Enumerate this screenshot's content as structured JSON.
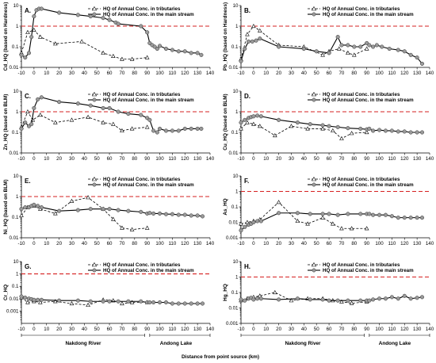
{
  "figure": {
    "x_axis_label": "Distance from point source (km)",
    "region_labels": [
      "Nakdong River",
      "Andong Lake",
      "Nakdong River",
      "Andong Lake"
    ]
  },
  "chart_data": [
    {
      "type": "line",
      "panel": "A.",
      "ylabel": "Cd_HQ (based on Hardness)",
      "yscale": "log",
      "ylim": [
        0.01,
        10
      ],
      "yticks": [
        0.01,
        0.1,
        1,
        10
      ],
      "ytick_labels": [
        "0.01",
        "0.1",
        "1",
        "10"
      ],
      "xlim": [
        -10,
        140
      ],
      "xticks": [
        -10,
        0,
        10,
        20,
        30,
        40,
        50,
        60,
        70,
        80,
        90,
        100,
        110,
        120,
        130,
        140
      ],
      "threshold": 1,
      "legend": [
        "HQ of Annual Conc. in tributaries",
        "HQ of Annual Conc. in the main stream"
      ],
      "series": [
        {
          "name": "HQ of Annual Conc. in tributaries",
          "x": [
            -10,
            -5,
            0,
            5,
            17,
            38,
            55,
            63,
            70,
            78,
            90
          ],
          "y": [
            0.05,
            0.5,
            0.65,
            0.3,
            0.14,
            0.18,
            0.05,
            0.035,
            0.025,
            0.025,
            0.03
          ]
        },
        {
          "name": "HQ of Annual Conc. in the main stream",
          "x": [
            -10,
            -7,
            -4,
            -2,
            0,
            2,
            4,
            6,
            20,
            35,
            45,
            55,
            60,
            65,
            67,
            85,
            90,
            92,
            94,
            96,
            98,
            100,
            105,
            110,
            115,
            120,
            125,
            130,
            133
          ],
          "y": [
            0.04,
            0.03,
            0.05,
            0.3,
            3,
            6,
            7,
            7,
            4.5,
            3.5,
            3,
            2.5,
            2,
            1.5,
            1.3,
            1,
            0.5,
            0.15,
            0.12,
            0.1,
            0.08,
            0.11,
            0.08,
            0.07,
            0.06,
            0.06,
            0.05,
            0.05,
            0.04
          ]
        }
      ]
    },
    {
      "type": "line",
      "panel": "B.",
      "ylabel": "Pb_HQ (based on Hardness)",
      "yscale": "log",
      "ylim": [
        0.01,
        10
      ],
      "yticks": [
        0.01,
        0.1,
        1,
        10
      ],
      "ytick_labels": [
        "0.01",
        "0.1",
        "1",
        "10"
      ],
      "xlim": [
        -10,
        140
      ],
      "xticks": [
        -10,
        0,
        10,
        20,
        30,
        40,
        50,
        60,
        70,
        80,
        90,
        100,
        110,
        120,
        130,
        140
      ],
      "threshold": 1,
      "legend": [
        "HQ of Annual Conc. in tributaries",
        "HQ of Annual Conc. in the main stream"
      ],
      "series": [
        {
          "name": "HQ of Annual Conc. in tributaries",
          "x": [
            -10,
            -5,
            0,
            5,
            20,
            40,
            55,
            60,
            68,
            75,
            80,
            90
          ],
          "y": [
            0.025,
            0.4,
            1,
            0.6,
            0.12,
            0.1,
            0.04,
            0.06,
            0.08,
            0.05,
            0.04,
            0.08
          ]
        },
        {
          "name": "HQ of Annual Conc. in the main stream",
          "x": [
            -10,
            -7,
            -4,
            -1,
            2,
            5,
            20,
            40,
            50,
            60,
            67,
            70,
            75,
            80,
            85,
            90,
            92,
            95,
            98,
            102,
            108,
            115,
            120,
            125,
            130,
            134
          ],
          "y": [
            0.02,
            0.08,
            0.18,
            0.18,
            0.2,
            0.25,
            0.1,
            0.08,
            0.06,
            0.05,
            0.3,
            0.12,
            0.12,
            0.1,
            0.1,
            0.15,
            0.12,
            0.1,
            0.12,
            0.1,
            0.08,
            0.07,
            0.06,
            0.04,
            0.03,
            0.015
          ]
        }
      ]
    },
    {
      "type": "line",
      "panel": "C.",
      "ylabel": "Zn_HQ (based on BLM)",
      "yscale": "log",
      "ylim": [
        0.01,
        10
      ],
      "yticks": [
        0.01,
        0.1,
        1,
        10
      ],
      "ytick_labels": [
        "0.01",
        "0.1",
        "1",
        "10"
      ],
      "xlim": [
        -10,
        140
      ],
      "xticks": [
        -10,
        0,
        10,
        20,
        30,
        40,
        50,
        60,
        70,
        80,
        90,
        100,
        110,
        120,
        130,
        140
      ],
      "threshold": 1,
      "legend": [
        "HQ of Annual Conc. in tributaries",
        "HQ of Annual Conc. in the main stream"
      ],
      "series": [
        {
          "name": "HQ of Annual Conc. in tributaries",
          "x": [
            -10,
            -5,
            -1,
            5,
            17,
            30,
            43,
            55,
            63,
            70,
            78,
            90
          ],
          "y": [
            0.18,
            1,
            0.4,
            0.7,
            0.3,
            0.4,
            0.55,
            0.3,
            0.25,
            0.12,
            0.15,
            0.18
          ]
        },
        {
          "name": "HQ of Annual Conc. in the main stream",
          "x": [
            -10,
            -7,
            -4,
            -2,
            0,
            3,
            6,
            20,
            35,
            45,
            55,
            60,
            67,
            75,
            85,
            90,
            92,
            95,
            98,
            100,
            105,
            110,
            115,
            120,
            125,
            130,
            133
          ],
          "y": [
            0.15,
            0.3,
            0.2,
            0.25,
            1.5,
            4,
            5,
            3,
            2.5,
            2,
            1.5,
            1.5,
            1,
            0.8,
            0.7,
            0.5,
            0.4,
            0.12,
            0.1,
            0.15,
            0.12,
            0.12,
            0.12,
            0.15,
            0.15,
            0.15,
            0.15
          ]
        }
      ]
    },
    {
      "type": "line",
      "panel": "D.",
      "ylabel": "Cu_HQ (based on BLM)",
      "yscale": "log",
      "ylim": [
        0.01,
        10
      ],
      "yticks": [
        0.01,
        0.1,
        1,
        10
      ],
      "ytick_labels": [
        "0.01",
        "0.1",
        "1",
        "10"
      ],
      "xlim": [
        -10,
        140
      ],
      "xticks": [
        -10,
        0,
        10,
        20,
        30,
        40,
        50,
        60,
        70,
        80,
        90,
        100,
        110,
        120,
        130,
        140
      ],
      "threshold": 1,
      "legend": [
        "HQ of Annual Conc. in tributaries",
        "HQ of Annual Conc. in the main stream"
      ],
      "series": [
        {
          "name": "HQ of Annual Conc. in tributaries",
          "x": [
            -10,
            -5,
            0,
            5,
            17,
            30,
            43,
            55,
            63,
            70,
            78,
            90
          ],
          "y": [
            0.15,
            0.3,
            0.25,
            0.2,
            0.07,
            0.2,
            0.15,
            0.15,
            0.12,
            0.05,
            0.09,
            0.1
          ]
        },
        {
          "name": "HQ of Annual Conc. in the main stream",
          "x": [
            -10,
            -7,
            -4,
            -2,
            0,
            3,
            6,
            20,
            35,
            45,
            55,
            60,
            67,
            75,
            85,
            90,
            92,
            95,
            100,
            105,
            110,
            115,
            120,
            125,
            130,
            134
          ],
          "y": [
            0.3,
            0.4,
            0.5,
            0.55,
            0.6,
            0.65,
            0.6,
            0.4,
            0.3,
            0.25,
            0.22,
            0.2,
            0.18,
            0.16,
            0.15,
            0.14,
            0.15,
            0.12,
            0.13,
            0.12,
            0.12,
            0.11,
            0.11,
            0.1,
            0.1,
            0.1
          ]
        }
      ]
    },
    {
      "type": "line",
      "panel": "E.",
      "ylabel": "Ni_HQ (based on BLM)",
      "yscale": "log",
      "ylim": [
        0.01,
        10
      ],
      "yticks": [
        0.01,
        0.1,
        1,
        10
      ],
      "ytick_labels": [
        "0.01",
        "0.1",
        "1",
        "10"
      ],
      "xlim": [
        -10,
        140
      ],
      "xticks": [
        -10,
        0,
        10,
        20,
        30,
        40,
        50,
        60,
        70,
        80,
        90,
        100,
        110,
        120,
        130,
        140
      ],
      "threshold": 1,
      "legend": [
        "HQ of Annual Conc. in tributaries",
        "HQ of Annual Conc. in the main stream"
      ],
      "series": [
        {
          "name": "HQ of Annual Conc. in tributaries",
          "x": [
            -10,
            -5,
            0,
            5,
            17,
            30,
            43,
            55,
            63,
            70,
            78,
            90
          ],
          "y": [
            0.12,
            0.3,
            0.35,
            0.25,
            0.15,
            0.6,
            0.9,
            0.25,
            0.08,
            0.03,
            0.025,
            0.03
          ]
        },
        {
          "name": "HQ of Annual Conc. in the main stream",
          "x": [
            -10,
            -7,
            -4,
            -2,
            0,
            3,
            6,
            20,
            35,
            45,
            55,
            60,
            67,
            75,
            85,
            90,
            92,
            95,
            100,
            105,
            110,
            115,
            120,
            125,
            130,
            134
          ],
          "y": [
            0.25,
            0.3,
            0.3,
            0.35,
            0.4,
            0.35,
            0.3,
            0.2,
            0.22,
            0.25,
            0.25,
            0.25,
            0.22,
            0.2,
            0.18,
            0.15,
            0.16,
            0.15,
            0.15,
            0.14,
            0.14,
            0.13,
            0.13,
            0.12,
            0.12,
            0.11
          ]
        }
      ]
    },
    {
      "type": "line",
      "panel": "F.",
      "ylabel": "As_HQ",
      "yscale": "log",
      "ylim": [
        0.001,
        10
      ],
      "yticks": [
        0.001,
        0.01,
        0.1,
        1,
        10
      ],
      "ytick_labels": [
        "0.001",
        "0.01",
        "0.1",
        "1",
        "10"
      ],
      "xlim": [
        -10,
        140
      ],
      "xticks": [
        -10,
        0,
        10,
        20,
        30,
        40,
        50,
        60,
        70,
        80,
        90,
        100,
        110,
        120,
        130,
        140
      ],
      "threshold": 1,
      "legend": [
        "HQ of Annual Conc. in tributaries",
        "HQ of Annual Conc. in the main stream"
      ],
      "series": [
        {
          "name": "HQ of Annual Conc. in tributaries",
          "x": [
            -10,
            -5,
            0,
            5,
            20,
            35,
            43,
            55,
            63,
            70,
            78,
            90
          ],
          "y": [
            0.008,
            0.01,
            0.012,
            0.015,
            0.2,
            0.012,
            0.008,
            0.02,
            0.008,
            0.004,
            0.004,
            0.004
          ]
        },
        {
          "name": "HQ of Annual Conc. in the main stream",
          "x": [
            -10,
            -7,
            -4,
            -2,
            0,
            3,
            6,
            20,
            35,
            45,
            55,
            60,
            67,
            75,
            85,
            90,
            92,
            95,
            100,
            105,
            110,
            115,
            120,
            125,
            130,
            134
          ],
          "y": [
            0.003,
            0.005,
            0.007,
            0.008,
            0.01,
            0.012,
            0.012,
            0.04,
            0.04,
            0.035,
            0.035,
            0.035,
            0.03,
            0.035,
            0.035,
            0.035,
            0.035,
            0.03,
            0.03,
            0.03,
            0.025,
            0.02,
            0.02,
            0.02,
            0.02,
            0.02
          ]
        }
      ]
    },
    {
      "type": "line",
      "panel": "G.",
      "ylabel": "Cr_HQ",
      "yscale": "log",
      "ylim": [
        0.0001,
        10
      ],
      "yticks": [
        0.001,
        0.01,
        0.1,
        1,
        10
      ],
      "ytick_labels": [
        "0.001",
        "0.01",
        "0.1",
        "1",
        "10"
      ],
      "xlim": [
        -10,
        140
      ],
      "xticks": [
        -10,
        0,
        10,
        20,
        30,
        40,
        50,
        60,
        70,
        80,
        90,
        100,
        110,
        120,
        130,
        140
      ],
      "threshold": 1,
      "legend": [
        "HQ of Annual Conc. in tributaries",
        "HQ of Annual Conc. in the main stream"
      ],
      "series": [
        {
          "name": "HQ of Annual Conc. in tributaries",
          "x": [
            -10,
            -5,
            0,
            5,
            17,
            30,
            43,
            55,
            63,
            70,
            78,
            90
          ],
          "y": [
            0.012,
            0.005,
            0.006,
            0.005,
            0.006,
            0.004,
            0.003,
            0.008,
            0.007,
            0.004,
            0.005,
            0.005
          ]
        },
        {
          "name": "HQ of Annual Conc. in the main stream",
          "x": [
            -10,
            -7,
            -4,
            -2,
            0,
            3,
            6,
            20,
            35,
            45,
            55,
            60,
            67,
            75,
            85,
            90,
            92,
            95,
            100,
            105,
            110,
            115,
            120,
            125,
            130,
            134
          ],
          "y": [
            0.015,
            0.012,
            0.01,
            0.009,
            0.008,
            0.008,
            0.008,
            0.007,
            0.007,
            0.006,
            0.006,
            0.006,
            0.006,
            0.006,
            0.006,
            0.005,
            0.005,
            0.005,
            0.005,
            0.005,
            0.004,
            0.004,
            0.004,
            0.004,
            0.004,
            0.004
          ]
        }
      ]
    },
    {
      "type": "line",
      "panel": "H.",
      "ylabel": "Hg_HQ",
      "yscale": "log",
      "ylim": [
        0.001,
        10
      ],
      "yticks": [
        0.001,
        0.01,
        0.1,
        1,
        10
      ],
      "ytick_labels": [
        "0.001",
        "0.01",
        "0.1",
        "1",
        "10"
      ],
      "xlim": [
        -10,
        140
      ],
      "xticks": [
        -10,
        0,
        10,
        20,
        30,
        40,
        50,
        60,
        70,
        80,
        90,
        100,
        110,
        120,
        130,
        140
      ],
      "threshold": 1,
      "legend": [
        "HQ of Annual Conc. in tributaries",
        "HQ of Annual Conc. in the main stream"
      ],
      "series": [
        {
          "name": "HQ of Annual Conc. in tributaries",
          "x": [
            -10,
            -5,
            0,
            5,
            17,
            30,
            43,
            55,
            63,
            70,
            78,
            90
          ],
          "y": [
            0.03,
            0.04,
            0.05,
            0.06,
            0.1,
            0.03,
            0.04,
            0.04,
            0.03,
            0.025,
            0.02,
            0.025
          ]
        },
        {
          "name": "HQ of Annual Conc. in the main stream",
          "x": [
            -10,
            -7,
            -4,
            -2,
            0,
            3,
            6,
            20,
            35,
            45,
            55,
            60,
            67,
            75,
            85,
            90,
            92,
            95,
            100,
            105,
            110,
            115,
            120,
            125,
            130,
            134
          ],
          "y": [
            0.035,
            0.03,
            0.04,
            0.045,
            0.035,
            0.04,
            0.04,
            0.035,
            0.04,
            0.035,
            0.035,
            0.03,
            0.03,
            0.03,
            0.03,
            0.03,
            0.03,
            0.035,
            0.04,
            0.04,
            0.05,
            0.04,
            0.06,
            0.04,
            0.045,
            0.05
          ]
        }
      ]
    }
  ]
}
